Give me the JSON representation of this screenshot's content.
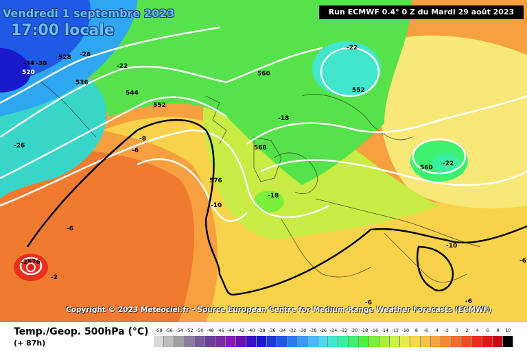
{
  "header": {
    "date_line": "Vendredi 1 septembre 2023",
    "time_line": "17:00 locale"
  },
  "run_info": "Run ECMWF 0.4° 0 Z du Mardi 29 août 2023",
  "copyright": "Copyright © 2023 Meteociel.fr - Source European Centre for Medium-Range Weather Forecasts (ECMWF)",
  "legend": {
    "title": "Temp./Geop. 500hPa (°C)",
    "lead_time": "(+ 87h)",
    "scale_values": [
      "-58",
      "-56",
      "-54",
      "-52",
      "-50",
      "-48",
      "-46",
      "-44",
      "-42",
      "-40",
      "-38",
      "-36",
      "-34",
      "-32",
      "-30",
      "-28",
      "-26",
      "-24",
      "-22",
      "-20",
      "-18",
      "-16",
      "-14",
      "-12",
      "-10",
      "-8",
      "-6",
      "-4",
      "-2",
      "0",
      "2",
      "4",
      "6",
      "8",
      "10"
    ],
    "scale_colors": [
      "#d9d9d9",
      "#bdbdbd",
      "#a0a0a0",
      "#8a7fa3",
      "#7a5c9c",
      "#6a3fa0",
      "#7a2da8",
      "#8a1ab8",
      "#6a0fb0",
      "#3a10c0",
      "#1a1acc",
      "#1a3ad8",
      "#1e5ae6",
      "#2a7af0",
      "#3a9af6",
      "#4ab8fa",
      "#4ed6f2",
      "#42e6cc",
      "#3aeea0",
      "#3ef070",
      "#4ef23e",
      "#7af03a",
      "#a6f03a",
      "#ccf04a",
      "#e8ec4a",
      "#f6d64e",
      "#f8c048",
      "#f8a640",
      "#f68a34",
      "#f26c2a",
      "#ee4e22",
      "#e8301c",
      "#dc1a18",
      "#c80c14",
      "#000000"
    ]
  },
  "map_labels": {
    "geopotential": [
      "528",
      "520",
      "536",
      "544",
      "552",
      "560",
      "552",
      "568",
      "576",
      "560",
      "576"
    ],
    "temperature": [
      "-34",
      "-30",
      "-26",
      "-22",
      "-22",
      "-26",
      "-18",
      "-8",
      "-6",
      "-10",
      "-6",
      "-18",
      "-22",
      "-10",
      "-6",
      "-2",
      "-25",
      "-6",
      "-6"
    ]
  }
}
